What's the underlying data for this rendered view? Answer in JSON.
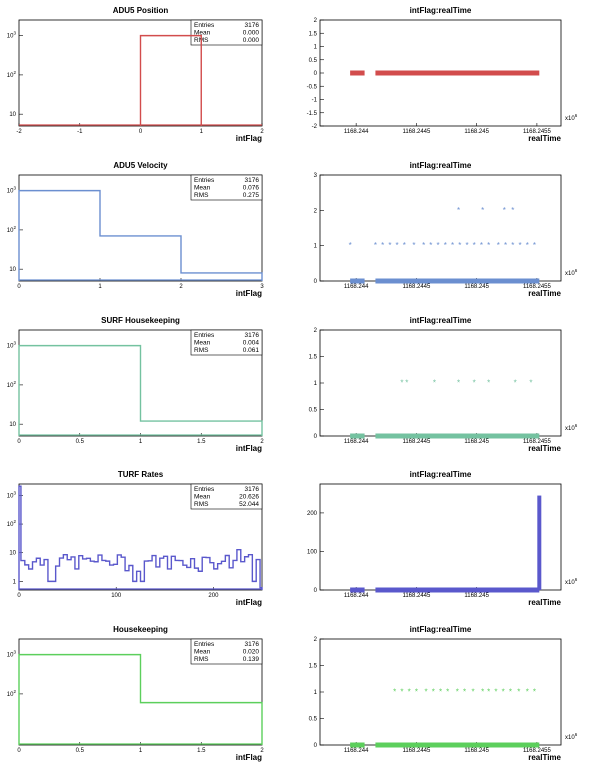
{
  "chart_data": [
    {
      "type": "histogram",
      "title": "ADU5 Position",
      "xlabel": "intFlag",
      "color": "#d24c4c",
      "ylog": true,
      "xlim": [
        -2,
        2
      ],
      "ylim": [
        5,
        2500
      ],
      "xticks": [
        "-2",
        "-1",
        "0",
        "1",
        "2"
      ],
      "yticks": [
        "10^3",
        "10^2",
        "10"
      ],
      "stats": {
        "Entries": "3176",
        "Mean": "0.000",
        "RMS": "0.000"
      },
      "bins": [
        {
          "x0": 0,
          "x1": 1,
          "y": 1000
        }
      ]
    },
    {
      "type": "scatter",
      "title": "intFlag:realTime",
      "xlabel": "realTime",
      "color": "#d24c4c",
      "xlim": [
        1168.2437,
        1168.2457
      ],
      "ylim": [
        -2,
        2
      ],
      "xticks": [
        "1168.244",
        "1168.2445",
        "1168.245",
        "1168.2455"
      ],
      "yticks": [
        "2",
        "1.5",
        "1",
        "0.5",
        "0",
        "-0.5",
        "-1",
        "-1.5",
        "-2"
      ],
      "xexp": "x10^6",
      "levels": [
        {
          "y": 0,
          "segments": [
            [
              1168.24395,
              1168.24407
            ],
            [
              1168.24416,
              1168.24552
            ]
          ]
        }
      ]
    },
    {
      "type": "histogram",
      "title": "ADU5 Velocity",
      "xlabel": "intFlag",
      "color": "#6b8fd0",
      "ylog": true,
      "xlim": [
        0,
        3
      ],
      "ylim": [
        5,
        2500
      ],
      "xticks": [
        "0",
        "1",
        "2",
        "3"
      ],
      "yticks": [
        "10^3",
        "10^2",
        "10"
      ],
      "stats": {
        "Entries": "3176",
        "Mean": "0.076",
        "RMS": "0.275"
      },
      "bins": [
        {
          "x0": 0,
          "x1": 1,
          "y": 1000
        },
        {
          "x0": 1,
          "x1": 2,
          "y": 70
        },
        {
          "x0": 2,
          "x1": 3,
          "y": 8
        }
      ]
    },
    {
      "type": "scatter",
      "title": "intFlag:realTime",
      "xlabel": "realTime",
      "color": "#6b8fd0",
      "xlim": [
        1168.2437,
        1168.2457
      ],
      "ylim": [
        0,
        3
      ],
      "xticks": [
        "1168.244",
        "1168.2445",
        "1168.245",
        "1168.2455"
      ],
      "yticks": [
        "3",
        "2",
        "1",
        "0"
      ],
      "xexp": "x10^6",
      "levels": [
        {
          "y": 0,
          "segments": [
            [
              1168.24395,
              1168.24407
            ],
            [
              1168.24416,
              1168.24552
            ]
          ]
        },
        {
          "y": 1,
          "points": [
            1168.24395,
            1168.24416,
            1168.24422,
            1168.24428,
            1168.24434,
            1168.2444,
            1168.24448,
            1168.24456,
            1168.24462,
            1168.24468,
            1168.24474,
            1168.2448,
            1168.24486,
            1168.24492,
            1168.24498,
            1168.24504,
            1168.2451,
            1168.24518,
            1168.24524,
            1168.2453,
            1168.24536,
            1168.24542,
            1168.24548
          ]
        },
        {
          "y": 2,
          "points": [
            1168.24485,
            1168.24505,
            1168.24523,
            1168.2453
          ]
        }
      ]
    },
    {
      "type": "histogram",
      "title": "SURF Housekeeping",
      "xlabel": "intFlag",
      "color": "#74c2a0",
      "ylog": true,
      "xlim": [
        0,
        2
      ],
      "ylim": [
        5,
        2500
      ],
      "xticks": [
        "0",
        "0.5",
        "1",
        "1.5",
        "2"
      ],
      "yticks": [
        "10^3",
        "10^2",
        "10"
      ],
      "stats": {
        "Entries": "3176",
        "Mean": "0.004",
        "RMS": "0.061"
      },
      "bins": [
        {
          "x0": 0,
          "x1": 1,
          "y": 1000
        },
        {
          "x0": 1,
          "x1": 2,
          "y": 12
        }
      ]
    },
    {
      "type": "scatter",
      "title": "intFlag:realTime",
      "xlabel": "realTime",
      "color": "#74c2a0",
      "xlim": [
        1168.2437,
        1168.2457
      ],
      "ylim": [
        0,
        2
      ],
      "xticks": [
        "1168.244",
        "1168.2445",
        "1168.245",
        "1168.2455"
      ],
      "yticks": [
        "2",
        "1.5",
        "1",
        "0.5",
        "0"
      ],
      "xexp": "x10^6",
      "levels": [
        {
          "y": 0,
          "segments": [
            [
              1168.24395,
              1168.24407
            ],
            [
              1168.24416,
              1168.24552
            ]
          ]
        },
        {
          "y": 1,
          "points": [
            1168.24438,
            1168.24442,
            1168.24465,
            1168.24485,
            1168.24498,
            1168.2451,
            1168.24532,
            1168.24545
          ]
        }
      ]
    },
    {
      "type": "histogram",
      "title": "TURF Rates",
      "xlabel": "intFlag",
      "color": "#5a58cc",
      "ylog": true,
      "xlim": [
        0,
        250
      ],
      "ylim": [
        0.5,
        2500
      ],
      "xticks": [
        "0",
        "100",
        "200"
      ],
      "yticks": [
        "10^3",
        "10^2",
        "10",
        "1"
      ],
      "stats": {
        "Entries": "3176",
        "Mean": "20.626",
        "RMS": "52.044"
      },
      "bins": [
        {
          "x0": 0,
          "x1": 2,
          "y": 2100
        },
        {
          "x0": 2,
          "x1": 248,
          "y": 4,
          "jagged": true
        },
        {
          "x0": 248,
          "x1": 250,
          "y": 0.6
        }
      ]
    },
    {
      "type": "scatter",
      "title": "intFlag:realTime",
      "xlabel": "realTime",
      "color": "#5a58cc",
      "xlim": [
        1168.2437,
        1168.2457
      ],
      "ylim": [
        0,
        275
      ],
      "xticks": [
        "1168.244",
        "1168.2445",
        "1168.245"
      ],
      "yticks": [
        "200",
        "100",
        "0"
      ],
      "xexp": "x10^6",
      "levels": [
        {
          "y": 0,
          "segments": [
            [
              1168.24395,
              1168.24407
            ],
            [
              1168.24416,
              1168.24552
            ]
          ]
        }
      ],
      "spike": {
        "x": 1168.24552,
        "y0": 0,
        "y1": 245
      }
    },
    {
      "type": "histogram",
      "title": "Housekeeping",
      "xlabel": "intFlag",
      "color": "#5ccf5c",
      "ylog": true,
      "xlim": [
        0,
        2
      ],
      "ylim": [
        5,
        2500
      ],
      "xticks": [
        "0",
        "0.5",
        "1",
        "1.5",
        "2"
      ],
      "yticks": [
        "10^3",
        "10^2"
      ],
      "stats": {
        "Entries": "3176",
        "Mean": "0.020",
        "RMS": "0.139"
      },
      "bins": [
        {
          "x0": 0,
          "x1": 1,
          "y": 1000
        },
        {
          "x0": 1,
          "x1": 2,
          "y": 60
        }
      ]
    },
    {
      "type": "scatter",
      "title": "intFlag:realTime",
      "xlabel": "realTime",
      "color": "#5ccf5c",
      "xlim": [
        1168.2437,
        1168.2457
      ],
      "ylim": [
        0,
        2
      ],
      "xticks": [
        "1168.244",
        "1168.2445",
        "1168.245",
        "1168.2455"
      ],
      "yticks": [
        "2",
        "1.5",
        "1",
        "0.5",
        "0"
      ],
      "xexp": "x10^6",
      "levels": [
        {
          "y": 0,
          "segments": [
            [
              1168.24395,
              1168.24407
            ],
            [
              1168.24416,
              1168.24552
            ]
          ]
        },
        {
          "y": 1,
          "points": [
            1168.24432,
            1168.24438,
            1168.24444,
            1168.2445,
            1168.24458,
            1168.24464,
            1168.2447,
            1168.24476,
            1168.24484,
            1168.2449,
            1168.24497,
            1168.24505,
            1168.2451,
            1168.24516,
            1168.24522,
            1168.24528,
            1168.24535,
            1168.24542,
            1168.24548
          ]
        }
      ]
    }
  ]
}
